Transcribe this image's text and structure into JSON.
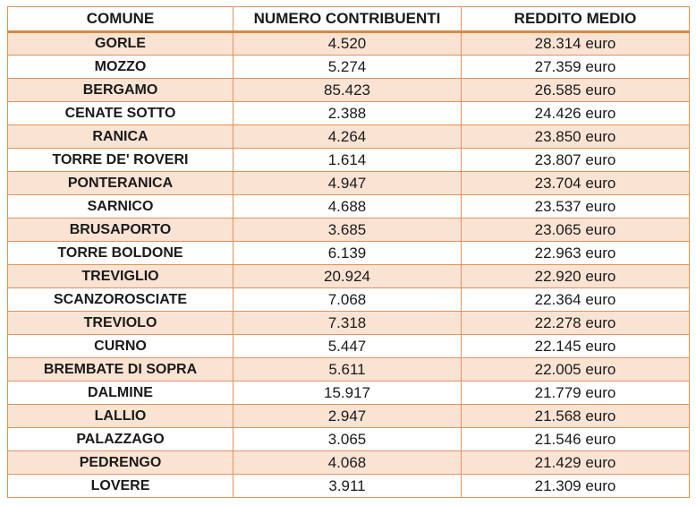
{
  "table": {
    "columns": [
      {
        "key": "comune",
        "label": "COMUNE"
      },
      {
        "key": "contribuenti",
        "label": "NUMERO CONTRIBUENTI"
      },
      {
        "key": "reddito",
        "label": "REDDITO MEDIO"
      }
    ],
    "rows": [
      {
        "comune": "GORLE",
        "contribuenti": "4.520",
        "reddito": "28.314 euro"
      },
      {
        "comune": "MOZZO",
        "contribuenti": "5.274",
        "reddito": "27.359 euro"
      },
      {
        "comune": "BERGAMO",
        "contribuenti": "85.423",
        "reddito": "26.585 euro"
      },
      {
        "comune": "CENATE SOTTO",
        "contribuenti": "2.388",
        "reddito": "24.426 euro"
      },
      {
        "comune": "RANICA",
        "contribuenti": "4.264",
        "reddito": "23.850 euro"
      },
      {
        "comune": "TORRE DE' ROVERI",
        "contribuenti": "1.614",
        "reddito": "23.807 euro"
      },
      {
        "comune": "PONTERANICA",
        "contribuenti": "4.947",
        "reddito": "23.704 euro"
      },
      {
        "comune": "SARNICO",
        "contribuenti": "4.688",
        "reddito": "23.537 euro"
      },
      {
        "comune": "BRUSAPORTO",
        "contribuenti": "3.685",
        "reddito": "23.065 euro"
      },
      {
        "comune": "TORRE BOLDONE",
        "contribuenti": "6.139",
        "reddito": "22.963 euro"
      },
      {
        "comune": "TREVIGLIO",
        "contribuenti": "20.924",
        "reddito": "22.920 euro"
      },
      {
        "comune": "SCANZOROSCIATE",
        "contribuenti": "7.068",
        "reddito": "22.364 euro"
      },
      {
        "comune": "TREVIOLO",
        "contribuenti": "7.318",
        "reddito": "22.278 euro"
      },
      {
        "comune": "CURNO",
        "contribuenti": "5.447",
        "reddito": "22.145 euro"
      },
      {
        "comune": "BREMBATE DI SOPRA",
        "contribuenti": "5.611",
        "reddito": "22.005 euro"
      },
      {
        "comune": "DALMINE",
        "contribuenti": "15.917",
        "reddito": "21.779 euro"
      },
      {
        "comune": "LALLIO",
        "contribuenti": "2.947",
        "reddito": "21.568 euro"
      },
      {
        "comune": "PALAZZAGO",
        "contribuenti": "3.065",
        "reddito": "21.546 euro"
      },
      {
        "comune": "PEDRENGO",
        "contribuenti": "4.068",
        "reddito": "21.429 euro"
      },
      {
        "comune": "LOVERE",
        "contribuenti": "3.911",
        "reddito": "21.309 euro"
      }
    ]
  },
  "colors": {
    "row_shade": "#FBE3D4",
    "border": "#E2925A",
    "header_rule": "#D98743"
  }
}
